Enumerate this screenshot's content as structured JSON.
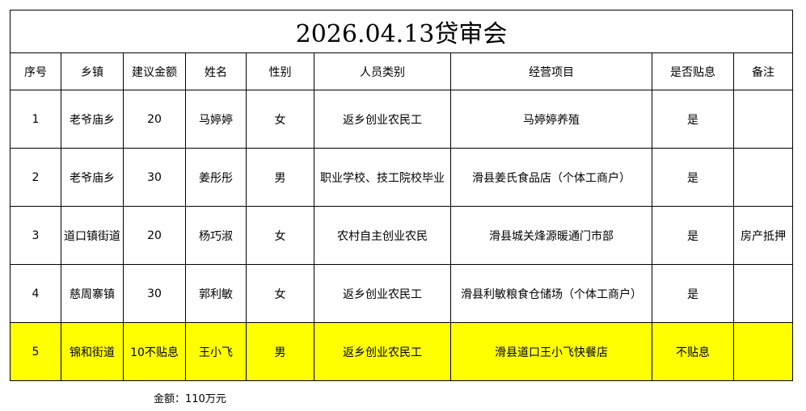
{
  "title": "2026.04.13贷审会",
  "headers": [
    "序号",
    "乡镇",
    "建议金额",
    "姓名",
    "性别",
    "人员类别",
    "经营项目",
    "是否贴息",
    "备注"
  ],
  "rows": [
    [
      "1",
      "老爷庙乡",
      "20",
      "马婷婷",
      "女",
      "返乡创业农民工",
      "马婷婷养殖",
      "是",
      ""
    ],
    [
      "2",
      "老爷庙乡",
      "30",
      "姜彤彤",
      "男",
      "职业学校、技工院校毕业",
      "滑县姜氏食品店（个体工商户）",
      "是",
      ""
    ],
    [
      "3",
      "道口镇街道",
      "20",
      "杨巧淑",
      "女",
      "农村自主创业农民",
      "滑县城关烽源暖通门市部",
      "是",
      "房产抵押"
    ],
    [
      "4",
      "慈周寨镇",
      "30",
      "郭利敏",
      "女",
      "返乡创业农民工",
      "滑县利敏粮食仓储场（个体工商户）",
      "是",
      ""
    ],
    [
      "5",
      "锦和街道",
      "10不贴息",
      "王小飞",
      "男",
      "返乡创业农民工",
      "滑县道口王小飞快餐店",
      "不贴息",
      ""
    ]
  ],
  "highlight_row_color": "#ffff00",
  "total": "金额：110万元"
}
